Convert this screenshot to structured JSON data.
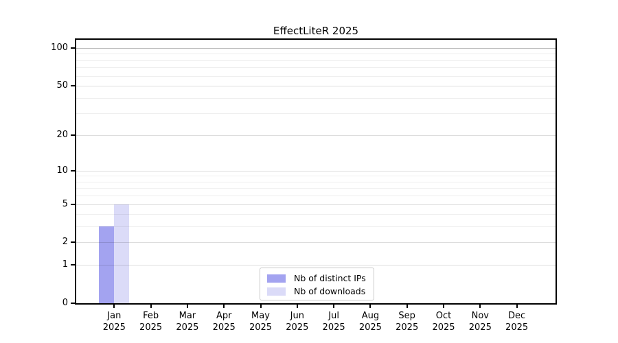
{
  "chart_data": {
    "type": "bar",
    "title": "EffectLiteR 2025",
    "year_label": "2025",
    "categories": [
      "Jan",
      "Feb",
      "Mar",
      "Apr",
      "May",
      "Jun",
      "Jul",
      "Aug",
      "Sep",
      "Oct",
      "Nov",
      "Dec"
    ],
    "series": [
      {
        "name": "Nb of distinct IPs",
        "color": "#a3a3f0",
        "values": [
          3,
          0,
          0,
          0,
          0,
          0,
          0,
          0,
          0,
          0,
          0,
          0
        ]
      },
      {
        "name": "Nb of downloads",
        "color": "#dbdbf8",
        "values": [
          5,
          0,
          0,
          0,
          0,
          0,
          0,
          0,
          0,
          0,
          0,
          0
        ]
      }
    ],
    "y_axis": {
      "scale": "log1p",
      "labeled_ticks": [
        0,
        1,
        2,
        5,
        10,
        20,
        50,
        100
      ],
      "minor_gridlines": [
        3,
        4,
        6,
        7,
        8,
        9,
        30,
        40,
        60,
        70,
        80,
        90
      ],
      "ylim": [
        0,
        116
      ]
    },
    "legend": {
      "position": "bottom-center",
      "entries": [
        "Nb of distinct IPs",
        "Nb of downloads"
      ]
    },
    "grid": "horizontal"
  },
  "colors": {
    "background": "#ffffff",
    "spine": "#000000",
    "grid_minor": "rgba(0,0,0,0.062)",
    "grid_labeled": "rgba(0,0,0,0.135)",
    "grid_top": "rgba(0,0,0,0.27)",
    "legend_border": "#c9c9c9",
    "bar_distinct_ips": "#a3a3f0",
    "bar_downloads": "#dbdbf8"
  }
}
